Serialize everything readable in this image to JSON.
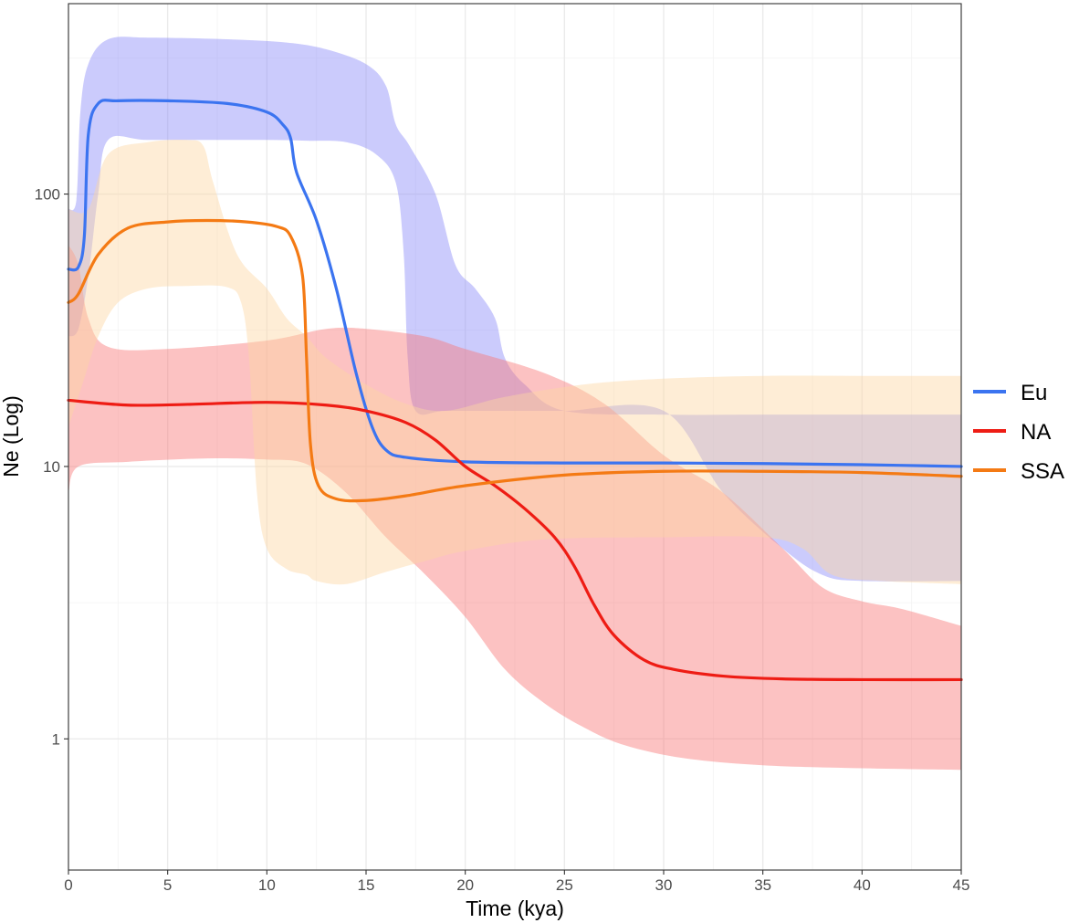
{
  "chart_data": {
    "type": "line",
    "title": "",
    "xlabel": "Time (kya)",
    "ylabel": "Ne (Log)",
    "xlim": [
      0,
      45
    ],
    "ylim": [
      0.33,
      500
    ],
    "y_scale": "log",
    "grid": true,
    "x_ticks": [
      0,
      5,
      10,
      15,
      20,
      25,
      30,
      35,
      40,
      45
    ],
    "x_tick_labels": [
      "0",
      "5",
      "10",
      "15",
      "20",
      "25",
      "30",
      "35",
      "40",
      "45"
    ],
    "y_ticks": [
      1,
      10,
      100
    ],
    "y_tick_labels": [
      "1",
      "10",
      "100"
    ],
    "legend_position": "right",
    "series": [
      {
        "name": "Eu",
        "color": "#3b74f0",
        "band_color": "#8c8cf8",
        "points": [
          [
            0,
            53
          ],
          [
            0.5,
            54
          ],
          [
            0.8,
            70
          ],
          [
            1.0,
            165
          ],
          [
            1.5,
            215
          ],
          [
            2.5,
            220
          ],
          [
            5,
            220
          ],
          [
            8,
            215
          ],
          [
            10,
            200
          ],
          [
            10.8,
            180
          ],
          [
            11.2,
            160
          ],
          [
            11.5,
            120
          ],
          [
            12.5,
            80
          ],
          [
            13.5,
            45
          ],
          [
            14.5,
            22
          ],
          [
            15.3,
            14
          ],
          [
            16,
            11.5
          ],
          [
            17,
            10.8
          ],
          [
            20,
            10.4
          ],
          [
            25,
            10.3
          ],
          [
            30,
            10.3
          ],
          [
            35,
            10.25
          ],
          [
            40,
            10.15
          ],
          [
            45,
            10.0
          ]
        ],
        "upper": [
          [
            0,
            88
          ],
          [
            0.4,
            95
          ],
          [
            0.6,
            200
          ],
          [
            1,
            300
          ],
          [
            2,
            370
          ],
          [
            4,
            375
          ],
          [
            8,
            370
          ],
          [
            11,
            360
          ],
          [
            13,
            340
          ],
          [
            15,
            300
          ],
          [
            16,
            250
          ],
          [
            16.5,
            180
          ],
          [
            17.2,
            150
          ],
          [
            18.5,
            100
          ],
          [
            19.5,
            55
          ],
          [
            20.5,
            45
          ],
          [
            21.5,
            35
          ],
          [
            22,
            25
          ],
          [
            23,
            20
          ],
          [
            25,
            16
          ],
          [
            30,
            15.5
          ],
          [
            35,
            15.5
          ],
          [
            40,
            15.5
          ],
          [
            45,
            15.5
          ]
        ],
        "lower": [
          [
            0,
            30
          ],
          [
            0.5,
            32
          ],
          [
            1,
            50
          ],
          [
            1.5,
            100
          ],
          [
            2,
            158
          ],
          [
            4,
            158
          ],
          [
            8,
            158
          ],
          [
            10,
            158
          ],
          [
            12,
            157
          ],
          [
            14,
            155
          ],
          [
            15.5,
            140
          ],
          [
            16.5,
            110
          ],
          [
            16.9,
            60
          ],
          [
            17.1,
            25
          ],
          [
            17.5,
            16
          ],
          [
            19,
            16
          ],
          [
            22,
            16
          ],
          [
            25,
            16
          ],
          [
            30,
            16
          ],
          [
            33,
            8
          ],
          [
            36,
            5
          ],
          [
            38,
            4
          ],
          [
            40,
            3.8
          ],
          [
            45,
            3.8
          ]
        ]
      },
      {
        "name": "NA",
        "color": "#ee1c14",
        "band_color": "#f87878",
        "points": [
          [
            0,
            17.5
          ],
          [
            3,
            16.8
          ],
          [
            6,
            16.9
          ],
          [
            10,
            17.2
          ],
          [
            13,
            16.8
          ],
          [
            15,
            16
          ],
          [
            17,
            14.5
          ],
          [
            18.5,
            12.5
          ],
          [
            20,
            10
          ],
          [
            21.5,
            8.5
          ],
          [
            23,
            7
          ],
          [
            24.5,
            5.5
          ],
          [
            25.5,
            4.3
          ],
          [
            26.5,
            3.1
          ],
          [
            27.5,
            2.4
          ],
          [
            29,
            1.95
          ],
          [
            30.5,
            1.8
          ],
          [
            33,
            1.7
          ],
          [
            36,
            1.66
          ],
          [
            40,
            1.65
          ],
          [
            45,
            1.65
          ]
        ],
        "upper": [
          [
            0,
            65
          ],
          [
            0.5,
            55
          ],
          [
            1,
            35
          ],
          [
            2,
            27.5
          ],
          [
            5,
            27
          ],
          [
            10,
            29
          ],
          [
            13,
            32
          ],
          [
            15,
            32
          ],
          [
            18,
            30
          ],
          [
            20,
            27
          ],
          [
            24,
            22
          ],
          [
            27,
            17
          ],
          [
            30,
            11
          ],
          [
            33,
            8
          ],
          [
            36,
            5
          ],
          [
            38,
            3.6
          ],
          [
            40,
            3.2
          ],
          [
            42,
            3
          ],
          [
            45,
            2.6
          ]
        ],
        "lower": [
          [
            0,
            8
          ],
          [
            0.5,
            10
          ],
          [
            3,
            10.4
          ],
          [
            7,
            10.7
          ],
          [
            10,
            10.6
          ],
          [
            12,
            10.2
          ],
          [
            14,
            8
          ],
          [
            16,
            5.5
          ],
          [
            18,
            4
          ],
          [
            20,
            2.8
          ],
          [
            22,
            1.8
          ],
          [
            24,
            1.35
          ],
          [
            26,
            1.1
          ],
          [
            28,
            0.95
          ],
          [
            31,
            0.85
          ],
          [
            35,
            0.8
          ],
          [
            40,
            0.78
          ],
          [
            45,
            0.77
          ]
        ]
      },
      {
        "name": "SSA",
        "color": "#f47a14",
        "band_color": "#fdd8a3",
        "points": [
          [
            0,
            40
          ],
          [
            0.5,
            43
          ],
          [
            1.5,
            60
          ],
          [
            3,
            75
          ],
          [
            5,
            79
          ],
          [
            7,
            80
          ],
          [
            9,
            79
          ],
          [
            10.5,
            76
          ],
          [
            11.2,
            70
          ],
          [
            11.8,
            50
          ],
          [
            12,
            25
          ],
          [
            12.2,
            12
          ],
          [
            12.6,
            8.5
          ],
          [
            13.5,
            7.6
          ],
          [
            15,
            7.5
          ],
          [
            17,
            7.8
          ],
          [
            20,
            8.5
          ],
          [
            25,
            9.3
          ],
          [
            30,
            9.6
          ],
          [
            35,
            9.6
          ],
          [
            40,
            9.5
          ],
          [
            45,
            9.2
          ]
        ],
        "upper": [
          [
            0,
            88
          ],
          [
            1,
            88
          ],
          [
            2,
            140
          ],
          [
            4,
            155
          ],
          [
            6,
            158
          ],
          [
            6.8,
            150
          ],
          [
            7.3,
            110
          ],
          [
            8.5,
            60
          ],
          [
            10,
            45
          ],
          [
            11,
            35
          ],
          [
            12,
            30
          ],
          [
            13,
            25
          ],
          [
            15,
            20
          ],
          [
            17,
            17
          ],
          [
            19,
            16
          ],
          [
            22,
            18
          ],
          [
            26,
            20
          ],
          [
            30,
            21
          ],
          [
            35,
            21.5
          ],
          [
            40,
            21.5
          ],
          [
            45,
            21.5
          ]
        ],
        "lower": [
          [
            0,
            14
          ],
          [
            0.7,
            20
          ],
          [
            1.5,
            30
          ],
          [
            2.5,
            40
          ],
          [
            4,
            45
          ],
          [
            6,
            46
          ],
          [
            8,
            45.5
          ],
          [
            8.7,
            40
          ],
          [
            9.1,
            25
          ],
          [
            9.5,
            8
          ],
          [
            10,
            5
          ],
          [
            11,
            4.2
          ],
          [
            12,
            4
          ],
          [
            12.5,
            3.8
          ],
          [
            14,
            3.7
          ],
          [
            16,
            4.1
          ],
          [
            18,
            4.5
          ],
          [
            20,
            4.9
          ],
          [
            24,
            5.4
          ],
          [
            30,
            5.5
          ],
          [
            35,
            5.5
          ],
          [
            37,
            5
          ],
          [
            38.5,
            4
          ],
          [
            41,
            3.8
          ],
          [
            45,
            3.7
          ]
        ]
      }
    ]
  }
}
